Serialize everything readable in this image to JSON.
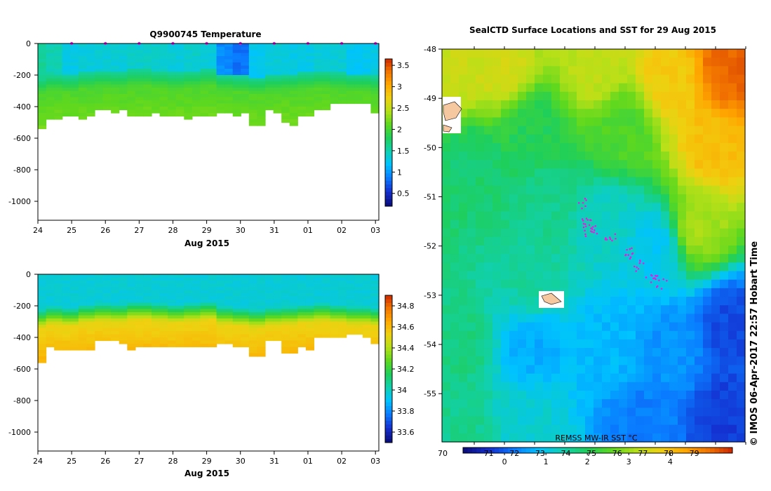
{
  "colors": {
    "temp_scale": [
      "#0a0f80",
      "#1430d0",
      "#0a7bff",
      "#00c3ff",
      "#10d0b0",
      "#1fcf5a",
      "#5fd81e",
      "#b8e018",
      "#f0d010",
      "#ffa500",
      "#f07000",
      "#c81e00"
    ],
    "sal_scale": [
      "#0a0f80",
      "#1430d0",
      "#0a7bff",
      "#00c3ff",
      "#10d0b0",
      "#1fcf5a",
      "#5fd81e",
      "#b8e018",
      "#f0d010",
      "#ffa500",
      "#f07000",
      "#c81e00"
    ],
    "sst_scale": [
      "#0a0f80",
      "#1430d0",
      "#0a7bff",
      "#00c3ff",
      "#10d0b0",
      "#1fcf5a",
      "#5fd81e",
      "#b8e018",
      "#f0d010",
      "#ffa500",
      "#f07000",
      "#c81e00"
    ],
    "profile_marker": "#e020e0",
    "land": "#f5c8a0"
  },
  "chart_data": [
    {
      "type": "heatmap",
      "title": "Q9900745  Temperature",
      "xlabel": "Aug 2015",
      "x_ticks": [
        "24",
        "25",
        "26",
        "27",
        "28",
        "29",
        "30",
        "31",
        "01",
        "02",
        "03"
      ],
      "y_ticks": [
        "0",
        "-200",
        "-400",
        "-600",
        "-800",
        "-1000"
      ],
      "ylim": [
        -1120,
        0
      ],
      "colorbar_ticks": [
        "0.5",
        "1",
        "1.5",
        "2",
        "2.5",
        "3",
        "3.5"
      ],
      "colorbar_range": [
        0.2,
        3.65
      ],
      "profile_markers": [
        25,
        26,
        27,
        28,
        29,
        30,
        31,
        32,
        33,
        34
      ],
      "profiles": [
        {
          "day": 24.0,
          "max_depth": 540,
          "surface": 1.55,
          "thermo_depth": 270
        },
        {
          "day": 24.5,
          "max_depth": 455,
          "surface": 1.45,
          "thermo_depth": 250
        },
        {
          "day": 25.0,
          "max_depth": 455,
          "surface": 1.25,
          "thermo_depth": 260
        },
        {
          "day": 25.5,
          "max_depth": 460,
          "surface": 1.3,
          "thermo_depth": 240
        },
        {
          "day": 26.0,
          "max_depth": 410,
          "surface": 1.3,
          "thermo_depth": 230
        },
        {
          "day": 26.5,
          "max_depth": 420,
          "surface": 1.3,
          "thermo_depth": 235
        },
        {
          "day": 27.0,
          "max_depth": 450,
          "surface": 1.35,
          "thermo_depth": 220
        },
        {
          "day": 27.5,
          "max_depth": 440,
          "surface": 1.35,
          "thermo_depth": 230
        },
        {
          "day": 28.0,
          "max_depth": 450,
          "surface": 1.3,
          "thermo_depth": 240
        },
        {
          "day": 28.5,
          "max_depth": 460,
          "surface": 1.35,
          "thermo_depth": 230
        },
        {
          "day": 29.0,
          "max_depth": 440,
          "surface": 1.3,
          "thermo_depth": 220
        },
        {
          "day": 29.5,
          "max_depth": 430,
          "surface": 0.9,
          "thermo_depth": 250
        },
        {
          "day": 30.0,
          "max_depth": 440,
          "surface": 0.8,
          "thermo_depth": 260
        },
        {
          "day": 30.5,
          "max_depth": 500,
          "surface": 1.2,
          "thermo_depth": 270
        },
        {
          "day": 31.0,
          "max_depth": 420,
          "surface": 1.3,
          "thermo_depth": 255
        },
        {
          "day": 31.5,
          "max_depth": 500,
          "surface": 1.25,
          "thermo_depth": 250
        },
        {
          "day": 32.0,
          "max_depth": 450,
          "surface": 1.25,
          "thermo_depth": 240
        },
        {
          "day": 32.5,
          "max_depth": 400,
          "surface": 1.3,
          "thermo_depth": 230
        },
        {
          "day": 33.0,
          "max_depth": 380,
          "surface": 1.3,
          "thermo_depth": 240
        },
        {
          "day": 33.5,
          "max_depth": 370,
          "surface": 1.2,
          "thermo_depth": 250
        },
        {
          "day": 34.0,
          "max_depth": 420,
          "surface": 1.25,
          "thermo_depth": 260
        }
      ]
    },
    {
      "type": "heatmap",
      "title": "",
      "xlabel": "Aug 2015",
      "x_ticks": [
        "24",
        "25",
        "26",
        "27",
        "28",
        "29",
        "30",
        "31",
        "01",
        "02",
        "03"
      ],
      "y_ticks": [
        "0",
        "-200",
        "-400",
        "-600",
        "-800",
        "-1000"
      ],
      "ylim": [
        -1120,
        0
      ],
      "colorbar_ticks": [
        "33.6",
        "33.8",
        "34",
        "34.2",
        "34.4",
        "34.6",
        "34.8"
      ],
      "colorbar_range": [
        33.5,
        34.9
      ],
      "surface_value": 33.95,
      "deep_value": 34.5
    },
    {
      "type": "heatmap",
      "title": "SealCTD Surface Locations and SST for 29 Aug 2015",
      "y_ticks": [
        "-48",
        "-49",
        "-50",
        "-51",
        "-52",
        "-53",
        "-54",
        "-55"
      ],
      "ylim": [
        -55.98,
        -48
      ],
      "legend_label": "REMSS MW-IR SST °C",
      "colorbar_ticks_f": [
        "70",
        "71",
        "72",
        "73",
        "74",
        "75",
        "76",
        "77",
        "78",
        "79"
      ],
      "colorbar_ticks_c": [
        "0",
        "1",
        "2",
        "3",
        "4"
      ],
      "colorbar_range": [
        -1,
        5.5
      ],
      "credit": "© IMOS 06-Apr-2017 22:57 Hobart Time",
      "sst_anchors": [
        {
          "x": 0.05,
          "y": 0.05,
          "v": 3.3
        },
        {
          "x": 0.2,
          "y": 0.05,
          "v": 3.4
        },
        {
          "x": 0.5,
          "y": 0.05,
          "v": 3.2
        },
        {
          "x": 0.75,
          "y": 0.08,
          "v": 3.8
        },
        {
          "x": 0.95,
          "y": 0.05,
          "v": 5.0
        },
        {
          "x": 0.9,
          "y": 0.25,
          "v": 4.0
        },
        {
          "x": 0.85,
          "y": 0.45,
          "v": 3.0
        },
        {
          "x": 0.6,
          "y": 0.2,
          "v": 2.4
        },
        {
          "x": 0.3,
          "y": 0.2,
          "v": 2.0
        },
        {
          "x": 0.1,
          "y": 0.3,
          "v": 1.8
        },
        {
          "x": 0.35,
          "y": 0.4,
          "v": 1.6
        },
        {
          "x": 0.55,
          "y": 0.45,
          "v": 1.2
        },
        {
          "x": 0.7,
          "y": 0.5,
          "v": 0.9
        },
        {
          "x": 0.3,
          "y": 0.6,
          "v": 1.5
        },
        {
          "x": 0.05,
          "y": 0.75,
          "v": 1.7
        },
        {
          "x": 0.3,
          "y": 0.75,
          "v": 0.6
        },
        {
          "x": 0.55,
          "y": 0.75,
          "v": 0.7
        },
        {
          "x": 0.75,
          "y": 0.75,
          "v": 0.4
        },
        {
          "x": 0.95,
          "y": 0.7,
          "v": -0.2
        },
        {
          "x": 0.95,
          "y": 0.95,
          "v": -0.3
        },
        {
          "x": 0.65,
          "y": 0.95,
          "v": 0.2
        },
        {
          "x": 0.3,
          "y": 0.95,
          "v": 1.1
        },
        {
          "x": 0.05,
          "y": 0.95,
          "v": 1.6
        }
      ]
    }
  ]
}
